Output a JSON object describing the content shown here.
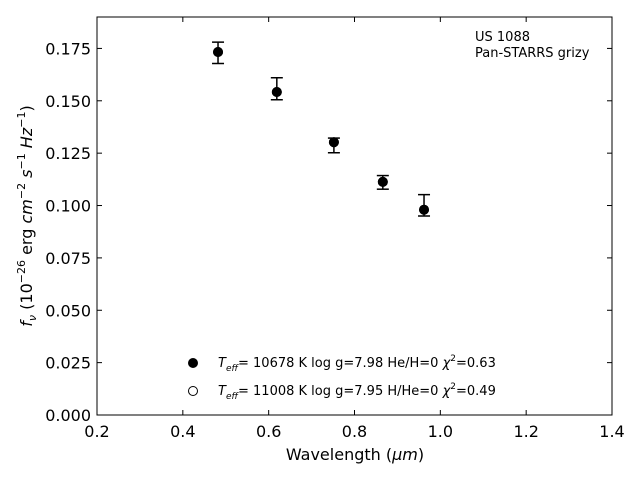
{
  "chart_data": {
    "type": "scatter",
    "title": "",
    "xlabel_main": "Wavelength (",
    "xlabel_unit": "μm",
    "xlabel_end": ")",
    "ylabel": "f_ν (10^-26 erg cm^-2 s^-1 Hz^-1)",
    "xlim": [
      0.2,
      1.4
    ],
    "ylim": [
      0.0,
      0.19
    ],
    "x_ticks": [
      0.2,
      0.4,
      0.6,
      0.8,
      1.0,
      1.2,
      1.4
    ],
    "x_tick_labels": [
      "0.2",
      "0.4",
      "0.6",
      "0.8",
      "1.0",
      "1.2",
      "1.4"
    ],
    "y_ticks": [
      0.0,
      0.025,
      0.05,
      0.075,
      0.1,
      0.125,
      0.15,
      0.175
    ],
    "y_tick_labels": [
      "0.000",
      "0.025",
      "0.050",
      "0.075",
      "0.100",
      "0.125",
      "0.150",
      "0.175"
    ],
    "grid": false,
    "annotation": {
      "line1": "US 1088",
      "line2": "Pan-STARRS grizy"
    },
    "legend_position": "lower-center",
    "series": [
      {
        "marker": "filled-circle",
        "legend": "T_eff= 10678 K  log g=7.98  He/H=0  χ^2=0.63",
        "points": [
          {
            "x": 0.482,
            "y": 0.1733
          },
          {
            "x": 0.619,
            "y": 0.1542
          },
          {
            "x": 0.752,
            "y": 0.1302
          },
          {
            "x": 0.866,
            "y": 0.1113
          },
          {
            "x": 0.962,
            "y": 0.098
          }
        ]
      },
      {
        "marker": "open-circle",
        "legend": "T_eff= 11008 K  log g=7.95  H/He=0  χ^2=0.49",
        "points": [
          {
            "x": 0.482,
            "y": 0.1733
          },
          {
            "x": 0.619,
            "y": 0.1542
          },
          {
            "x": 0.752,
            "y": 0.1302
          },
          {
            "x": 0.866,
            "y": 0.1113
          },
          {
            "x": 0.962,
            "y": 0.098
          }
        ]
      }
    ],
    "observed": [
      {
        "x": 0.482,
        "y": 0.1733,
        "err_low": 0.0055,
        "err_high": 0.0047
      },
      {
        "x": 0.619,
        "y": 0.1542,
        "err_low": 0.0037,
        "err_high": 0.0068
      },
      {
        "x": 0.752,
        "y": 0.1302,
        "err_low": 0.005,
        "err_high": 0.002
      },
      {
        "x": 0.866,
        "y": 0.1113,
        "err_low": 0.0035,
        "err_high": 0.003
      },
      {
        "x": 0.962,
        "y": 0.098,
        "err_low": 0.003,
        "err_high": 0.0072
      }
    ]
  }
}
